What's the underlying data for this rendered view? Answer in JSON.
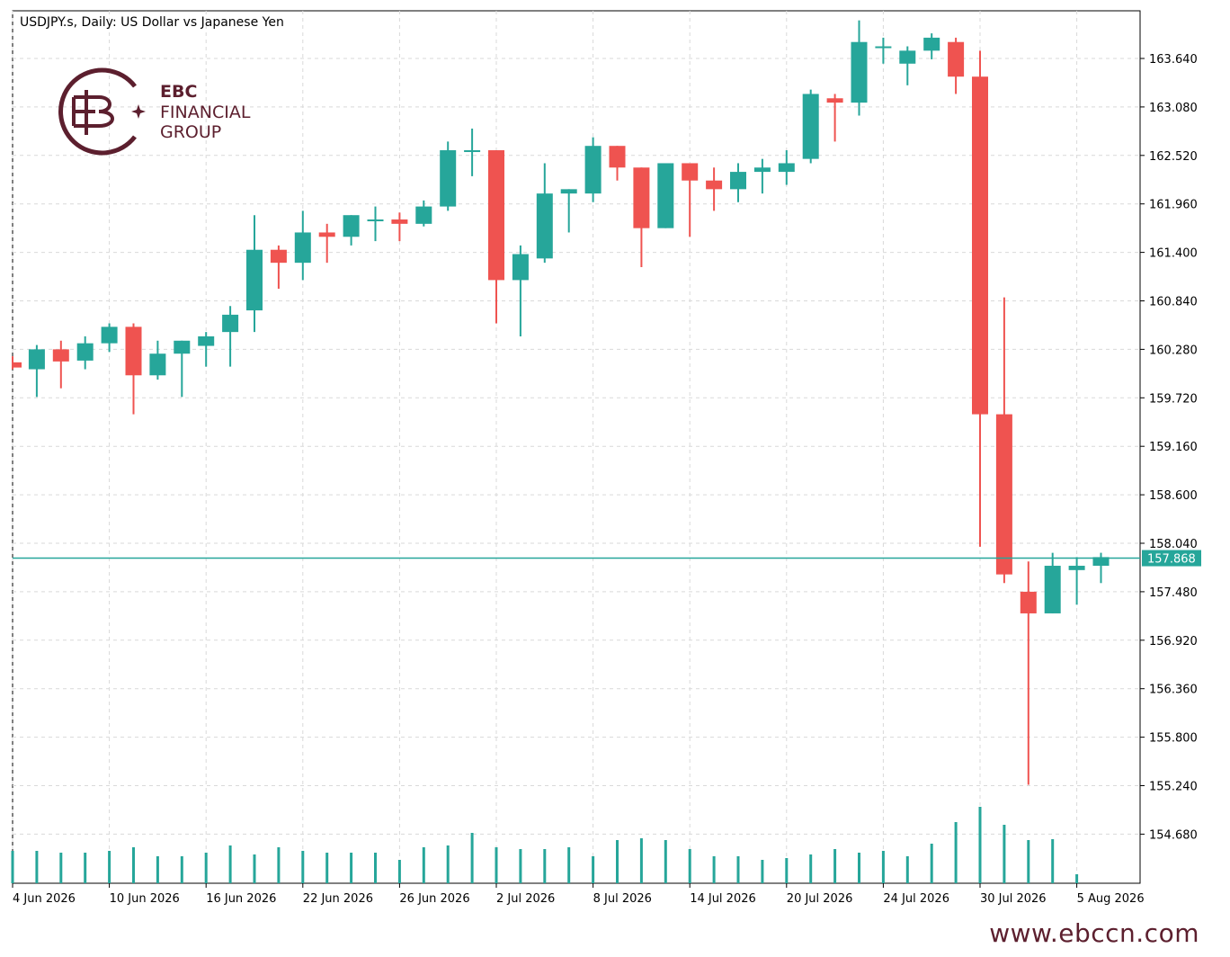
{
  "header": {
    "title": "USDJPY.s, Daily:  US Dollar vs Japanese Yen"
  },
  "logo": {
    "line1": "EBC",
    "line2": "FINANCIAL",
    "line3": "GROUP",
    "color": "#5c1f2e"
  },
  "footer": {
    "website": "www.ebccn.com"
  },
  "colors": {
    "up": "#26a69a",
    "down": "#ef5350",
    "volume": "#26a69a",
    "current_price_line": "#26a69a"
  },
  "chart_data": {
    "type": "candlestick",
    "symbol": "USDJPY.s",
    "timeframe": "Daily",
    "y_axis_ticks": [
      "163.640",
      "163.080",
      "162.520",
      "161.960",
      "161.400",
      "160.840",
      "160.280",
      "159.720",
      "159.160",
      "158.600",
      "158.040",
      "157.480",
      "156.920",
      "156.360",
      "155.800",
      "155.240",
      "154.680"
    ],
    "ylim": [
      154.18,
      164.15
    ],
    "x_axis_labels": [
      {
        "label": "4 Jun 2026",
        "index": 0
      },
      {
        "label": "10 Jun 2026",
        "index": 4
      },
      {
        "label": "16 Jun 2026",
        "index": 8
      },
      {
        "label": "22 Jun 2026",
        "index": 12
      },
      {
        "label": "26 Jun 2026",
        "index": 16
      },
      {
        "label": "2 Jul 2026",
        "index": 20
      },
      {
        "label": "8 Jul 2026",
        "index": 24
      },
      {
        "label": "14 Jul 2026",
        "index": 28
      },
      {
        "label": "20 Jul 2026",
        "index": 32
      },
      {
        "label": "24 Jul 2026",
        "index": 36
      },
      {
        "label": "30 Jul 2026",
        "index": 40
      },
      {
        "label": "5 Aug 2026",
        "index": 44
      }
    ],
    "current_price": "157.868",
    "current_price_value": 157.868,
    "candles": [
      {
        "o": 160.13,
        "h": 160.2,
        "l": 160.05,
        "c": 160.07
      },
      {
        "o": 160.05,
        "h": 160.33,
        "l": 159.73,
        "c": 160.28
      },
      {
        "o": 160.28,
        "h": 160.38,
        "l": 159.83,
        "c": 160.14
      },
      {
        "o": 160.15,
        "h": 160.43,
        "l": 160.05,
        "c": 160.35
      },
      {
        "o": 160.35,
        "h": 160.58,
        "l": 160.25,
        "c": 160.54
      },
      {
        "o": 160.54,
        "h": 160.58,
        "l": 159.53,
        "c": 159.98
      },
      {
        "o": 159.98,
        "h": 160.38,
        "l": 159.93,
        "c": 160.23
      },
      {
        "o": 160.23,
        "h": 160.38,
        "l": 159.73,
        "c": 160.38
      },
      {
        "o": 160.32,
        "h": 160.48,
        "l": 160.08,
        "c": 160.43
      },
      {
        "o": 160.48,
        "h": 160.78,
        "l": 160.08,
        "c": 160.68
      },
      {
        "o": 160.73,
        "h": 161.83,
        "l": 160.48,
        "c": 161.43
      },
      {
        "o": 161.43,
        "h": 161.48,
        "l": 160.98,
        "c": 161.28
      },
      {
        "o": 161.28,
        "h": 161.88,
        "l": 161.08,
        "c": 161.63
      },
      {
        "o": 161.63,
        "h": 161.73,
        "l": 161.28,
        "c": 161.58
      },
      {
        "o": 161.58,
        "h": 161.83,
        "l": 161.48,
        "c": 161.83
      },
      {
        "o": 161.78,
        "h": 161.93,
        "l": 161.53,
        "c": 161.78
      },
      {
        "o": 161.78,
        "h": 161.86,
        "l": 161.53,
        "c": 161.73
      },
      {
        "o": 161.73,
        "h": 162.0,
        "l": 161.7,
        "c": 161.93
      },
      {
        "o": 161.93,
        "h": 162.68,
        "l": 161.88,
        "c": 162.58
      },
      {
        "o": 162.58,
        "h": 162.83,
        "l": 162.28,
        "c": 162.58
      },
      {
        "o": 162.58,
        "h": 162.58,
        "l": 160.58,
        "c": 161.08
      },
      {
        "o": 161.08,
        "h": 161.48,
        "l": 160.43,
        "c": 161.38
      },
      {
        "o": 161.33,
        "h": 162.43,
        "l": 161.28,
        "c": 162.08
      },
      {
        "o": 162.08,
        "h": 162.13,
        "l": 161.63,
        "c": 162.13
      },
      {
        "o": 162.08,
        "h": 162.73,
        "l": 161.98,
        "c": 162.63
      },
      {
        "o": 162.63,
        "h": 162.63,
        "l": 162.23,
        "c": 162.38
      },
      {
        "o": 162.38,
        "h": 162.38,
        "l": 161.23,
        "c": 161.68
      },
      {
        "o": 161.68,
        "h": 162.43,
        "l": 161.68,
        "c": 162.43
      },
      {
        "o": 162.43,
        "h": 162.43,
        "l": 161.58,
        "c": 162.23
      },
      {
        "o": 162.23,
        "h": 162.38,
        "l": 161.88,
        "c": 162.13
      },
      {
        "o": 162.13,
        "h": 162.43,
        "l": 161.98,
        "c": 162.33
      },
      {
        "o": 162.33,
        "h": 162.48,
        "l": 162.08,
        "c": 162.38
      },
      {
        "o": 162.33,
        "h": 162.58,
        "l": 162.18,
        "c": 162.43
      },
      {
        "o": 162.48,
        "h": 163.28,
        "l": 162.43,
        "c": 163.23
      },
      {
        "o": 163.18,
        "h": 163.23,
        "l": 162.68,
        "c": 163.13
      },
      {
        "o": 163.13,
        "h": 164.08,
        "l": 162.98,
        "c": 163.83
      },
      {
        "o": 163.78,
        "h": 163.88,
        "l": 163.58,
        "c": 163.78
      },
      {
        "o": 163.58,
        "h": 163.78,
        "l": 163.33,
        "c": 163.73
      },
      {
        "o": 163.73,
        "h": 163.93,
        "l": 163.63,
        "c": 163.88
      },
      {
        "o": 163.83,
        "h": 163.88,
        "l": 163.23,
        "c": 163.43
      },
      {
        "o": 163.43,
        "h": 163.73,
        "l": 158.0,
        "c": 159.53
      },
      {
        "o": 159.53,
        "h": 160.88,
        "l": 157.58,
        "c": 157.68
      },
      {
        "o": 157.48,
        "h": 157.83,
        "l": 155.25,
        "c": 157.23
      },
      {
        "o": 157.23,
        "h": 157.93,
        "l": 157.23,
        "c": 157.78
      },
      {
        "o": 157.73,
        "h": 157.88,
        "l": 157.33,
        "c": 157.78
      },
      {
        "o": 157.78,
        "h": 157.93,
        "l": 157.58,
        "c": 157.88
      }
    ],
    "volume_relative": [
      0.36,
      0.36,
      0.34,
      0.34,
      0.36,
      0.4,
      0.3,
      0.3,
      0.34,
      0.42,
      0.32,
      0.4,
      0.36,
      0.34,
      0.34,
      0.34,
      0.26,
      0.4,
      0.42,
      0.56,
      0.4,
      0.38,
      0.38,
      0.4,
      0.3,
      0.48,
      0.5,
      0.48,
      0.38,
      0.3,
      0.3,
      0.26,
      0.28,
      0.32,
      0.38,
      0.34,
      0.36,
      0.3,
      0.44,
      0.68,
      0.85,
      0.65,
      0.48,
      0.49,
      0.1,
      0.0
    ]
  }
}
